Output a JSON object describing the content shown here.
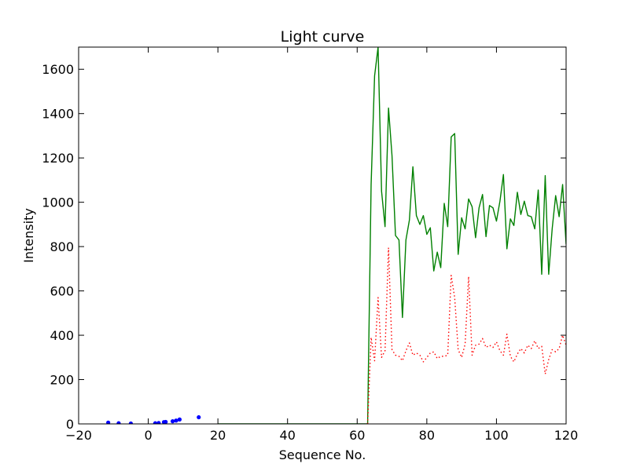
{
  "chart_data": {
    "type": "line",
    "title": "Light curve",
    "xlabel": "Sequence No.",
    "ylabel": "Intensity",
    "xlim": [
      -20,
      120
    ],
    "ylim": [
      0,
      1700
    ],
    "xticks": [
      -20,
      0,
      20,
      40,
      60,
      80,
      100,
      120
    ],
    "yticks": [
      0,
      200,
      400,
      600,
      800,
      1000,
      1200,
      1400,
      1600
    ],
    "xtick_labels": [
      "−20",
      "0",
      "20",
      "40",
      "60",
      "80",
      "100",
      "120"
    ],
    "ytick_labels": [
      "0",
      "200",
      "400",
      "600",
      "800",
      "1000",
      "1200",
      "1400",
      "1600"
    ],
    "grid": false,
    "series": [
      {
        "kind": "scatter",
        "color": "#0000ff",
        "x": [
          -11.5,
          -8.5,
          -5,
          2,
          3,
          4.5,
          5,
          7,
          8,
          9,
          14.5
        ],
        "y": [
          6,
          3,
          2,
          3,
          4,
          8,
          9,
          12,
          15,
          20,
          30
        ]
      },
      {
        "kind": "line",
        "style": "solid",
        "color": "#008000",
        "x": [
          20,
          63,
          64,
          65,
          66,
          67,
          68,
          69,
          70,
          71,
          72,
          73,
          74,
          75,
          76,
          77,
          78,
          79,
          80,
          81,
          82,
          83,
          84,
          85,
          86,
          87,
          88,
          89,
          90,
          91,
          92,
          93,
          94,
          95,
          96,
          97,
          98,
          99,
          100,
          101,
          102,
          103,
          104,
          105,
          106,
          107,
          108,
          109,
          110,
          111,
          112,
          113,
          114,
          115,
          116,
          117,
          118,
          119,
          120
        ],
        "y": [
          0,
          0,
          1080,
          1570,
          1700,
          1050,
          890,
          1425,
          1210,
          850,
          830,
          480,
          830,
          920,
          1160,
          940,
          900,
          940,
          855,
          885,
          690,
          775,
          705,
          995,
          890,
          1295,
          1310,
          765,
          930,
          880,
          1015,
          980,
          840,
          975,
          1035,
          845,
          985,
          975,
          915,
          1005,
          1125,
          790,
          925,
          895,
          1045,
          945,
          1005,
          940,
          935,
          880,
          1055,
          675,
          1120,
          675,
          880,
          1030,
          935,
          1080,
          810
        ]
      },
      {
        "kind": "line",
        "style": "dotted",
        "color": "#ff0000",
        "x": [
          63,
          64,
          65,
          66,
          67,
          68,
          69,
          70,
          71,
          72,
          73,
          74,
          75,
          76,
          77,
          78,
          79,
          80,
          81,
          82,
          83,
          84,
          85,
          86,
          87,
          88,
          89,
          90,
          91,
          92,
          93,
          94,
          95,
          96,
          97,
          98,
          99,
          100,
          101,
          102,
          103,
          104,
          105,
          106,
          107,
          108,
          109,
          110,
          111,
          112,
          113,
          114,
          115,
          116,
          117,
          118,
          119,
          120
        ],
        "y": [
          0,
          390,
          285,
          570,
          300,
          330,
          795,
          335,
          310,
          305,
          285,
          330,
          365,
          310,
          320,
          310,
          280,
          300,
          320,
          325,
          295,
          305,
          305,
          310,
          670,
          570,
          335,
          300,
          360,
          665,
          310,
          355,
          360,
          385,
          345,
          355,
          345,
          370,
          330,
          310,
          405,
          305,
          280,
          315,
          340,
          320,
          355,
          340,
          375,
          340,
          350,
          225,
          290,
          335,
          325,
          340,
          400,
          355
        ]
      }
    ]
  }
}
